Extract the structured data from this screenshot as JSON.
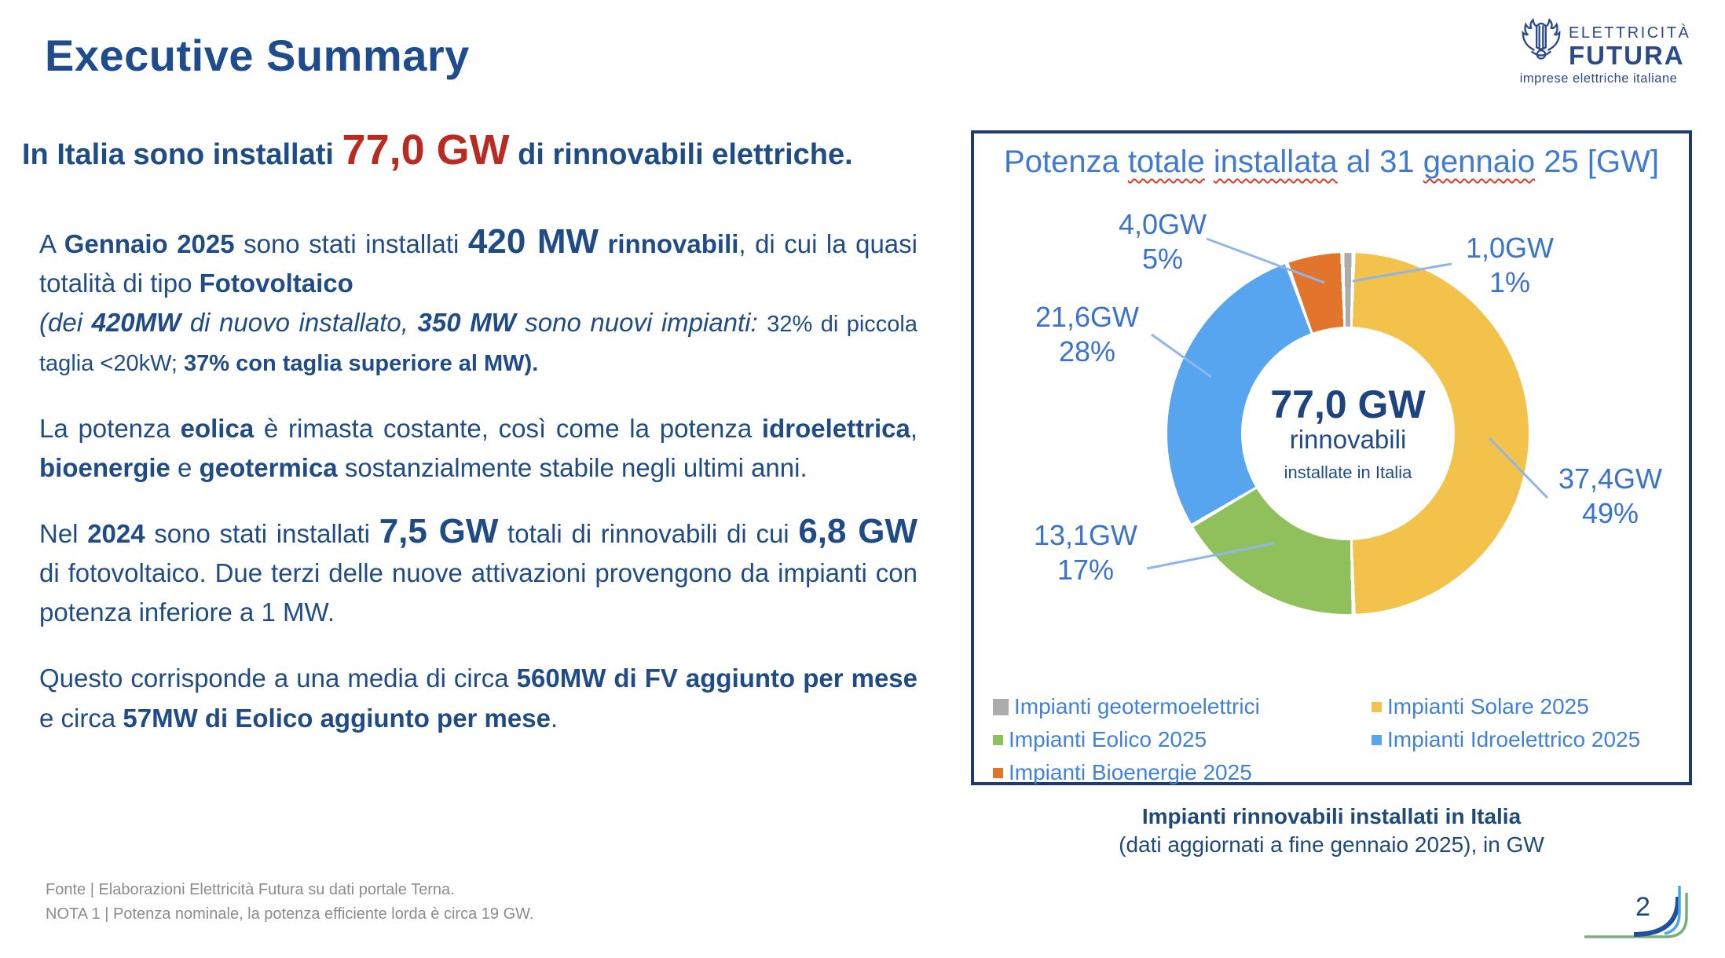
{
  "slide": {
    "title": "Executive Summary",
    "page_number": "2"
  },
  "logo": {
    "line1": "ELETTRICITÀ",
    "line2": "FUTURA",
    "line3": "imprese elettriche italiane"
  },
  "headline_runs": [
    {
      "t": "In Italia sono installati "
    },
    {
      "t": "77,0 GW",
      "c": "red-xl"
    },
    {
      "t": " di rinnovabili elettriche."
    }
  ],
  "paragraphs": {
    "p1a": [
      {
        "t": "A "
      },
      {
        "t": "Gennaio 2025",
        "c": "b"
      },
      {
        "t": " sono stati installati "
      },
      {
        "t": "420 MW",
        "c": "xl"
      },
      {
        "t": " "
      },
      {
        "t": "rinnovabili",
        "c": "b"
      },
      {
        "t": ", di cui la quasi totalità di tipo "
      },
      {
        "t": "Fotovoltaico",
        "c": "b"
      }
    ],
    "p1b": [
      {
        "t": "(dei ",
        "c": "i"
      },
      {
        "t": "420MW",
        "c": "bi"
      },
      {
        "t": " di nuovo installato, ",
        "c": "i"
      },
      {
        "t": "350 MW",
        "c": "bi"
      },
      {
        "t": " sono nuovi impianti: ",
        "c": "i"
      },
      {
        "t": "32% di piccola taglia <20kW; ",
        "c": "sm"
      },
      {
        "t": "37% con taglia superiore al MW).",
        "c": "sm b"
      }
    ],
    "p2": [
      {
        "t": "La potenza "
      },
      {
        "t": "eolica",
        "c": "b"
      },
      {
        "t": " è rimasta costante, così come la potenza "
      },
      {
        "t": "idroelettrica",
        "c": "b"
      },
      {
        "t": ", "
      },
      {
        "t": "bioenergie",
        "c": "b"
      },
      {
        "t": " e "
      },
      {
        "t": "geotermica",
        "c": "b"
      },
      {
        "t": " sostanzialmente stabile negli ultimi anni."
      }
    ],
    "p3": [
      {
        "t": "Nel "
      },
      {
        "t": "2024",
        "c": "b"
      },
      {
        "t": " sono stati installati "
      },
      {
        "t": "7,5 GW",
        "c": "xl"
      },
      {
        "t": " totali di rinnovabili di cui "
      },
      {
        "t": "6,8 GW",
        "c": "xl"
      },
      {
        "t": " di fotovoltaico. Due terzi delle nuove attivazioni provengono da impianti con potenza inferiore a 1 MW."
      }
    ],
    "p4": [
      {
        "t": "Questo corrisponde a una media di circa "
      },
      {
        "t": "560MW di FV aggiunto per mese",
        "c": "b"
      },
      {
        "t": " e circa "
      },
      {
        "t": "57MW di Eolico aggiunto per mese",
        "c": "b"
      },
      {
        "t": "."
      }
    ]
  },
  "footer": {
    "line1": "Fonte | Elaborazioni Elettricità Futura su dati portale Terna.",
    "line2": "NOTA 1 | Potenza nominale, la potenza efficiente lorda è circa 19 GW."
  },
  "chart_data": {
    "type": "pie",
    "subtype": "donut",
    "title": "Potenza totale installata al 31 gennaio 25 [GW]",
    "title_runs": [
      {
        "t": "Potenza "
      },
      {
        "t": "totale",
        "c": "wavy"
      },
      {
        "t": " "
      },
      {
        "t": "installata",
        "c": "wavy"
      },
      {
        "t": " al 31 "
      },
      {
        "t": "gennaio",
        "c": "wavy"
      },
      {
        "t": " 25 [GW]"
      }
    ],
    "center": {
      "value": "77,0 GW",
      "label": "rinnovabili",
      "sublabel": "installate in Italia"
    },
    "start_angle_deg": -1.8,
    "gap_deg": 1.3,
    "segments": [
      {
        "name": "Impianti geotermoelettrici",
        "gw": 1.0,
        "gw_label": "1,0GW",
        "pct": 1,
        "pct_label": "1%",
        "color": "#ACACAC"
      },
      {
        "name": "Impianti Solare 2025",
        "gw": 37.4,
        "gw_label": "37,4GW",
        "pct": 49,
        "pct_label": "49%",
        "color": "#F2C24A"
      },
      {
        "name": "Impianti Eolico 2025",
        "gw": 13.1,
        "gw_label": "13,1GW",
        "pct": 17,
        "pct_label": "17%",
        "color": "#8FC05C"
      },
      {
        "name": "Impianti Idroelettrico 2025",
        "gw": 21.6,
        "gw_label": "21,6GW",
        "pct": 28,
        "pct_label": "28%",
        "color": "#56A5EE"
      },
      {
        "name": "Impianti Bioenergie 2025",
        "gw": 4.0,
        "gw_label": "4,0GW",
        "pct": 5,
        "pct_label": "5%",
        "color": "#E2752B"
      }
    ],
    "legend_position": "bottom",
    "caption_bold": "Impianti rinnovabili installati in Italia",
    "caption_normal": "(dati aggiornati a fine gennaio 2025), in GW"
  },
  "colors": {
    "title_navy": "#1E4C8C",
    "body_navy": "#1F4B87",
    "accent_red": "#B92B21",
    "chart_blue": "#3E7AD2",
    "panel_border": "#1E3A6E",
    "footer_grey": "#8C8C8C"
  }
}
